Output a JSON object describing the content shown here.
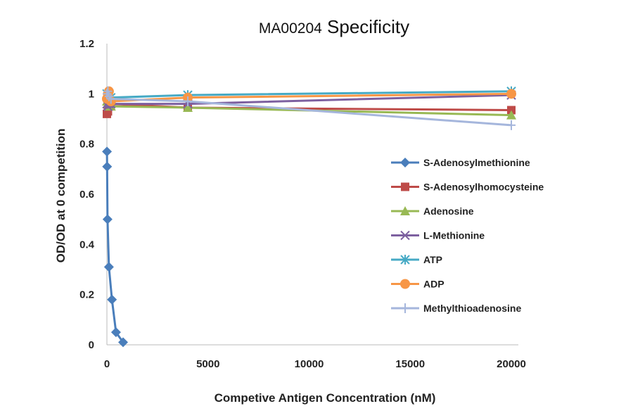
{
  "chart_data": {
    "type": "line",
    "title_prefix": "MA00204",
    "title": "Specificity",
    "xlabel": "Competive Antigen Concentration (nM)",
    "ylabel": "OD/OD at 0 competition",
    "xlim": [
      0,
      20000
    ],
    "ylim": [
      0,
      1.2
    ],
    "xticks": [
      0,
      5000,
      10000,
      15000,
      20000
    ],
    "yticks": [
      0,
      0.2,
      0.4,
      0.6,
      0.8,
      1,
      1.2
    ],
    "grid": false,
    "legend_position": "right",
    "series": [
      {
        "name": "S-Adenosylmethionine",
        "color": "#4a7ebb",
        "marker": "diamond",
        "x": [
          3,
          10,
          30,
          100,
          250,
          450,
          800
        ],
        "y": [
          0.77,
          0.71,
          0.5,
          0.31,
          0.18,
          0.05,
          0.01
        ]
      },
      {
        "name": "S-Adenosylhomocysteine",
        "color": "#be4b48",
        "marker": "square",
        "x": [
          0,
          50,
          100,
          200,
          4000,
          20000
        ],
        "y": [
          0.92,
          0.93,
          0.95,
          0.96,
          0.945,
          0.935
        ]
      },
      {
        "name": "Adenosine",
        "color": "#98b954",
        "marker": "triangle",
        "x": [
          0,
          50,
          100,
          200,
          4000,
          20000
        ],
        "y": [
          0.97,
          0.96,
          0.95,
          0.95,
          0.945,
          0.915
        ]
      },
      {
        "name": "L-Methionine",
        "color": "#7d60a0",
        "marker": "x",
        "x": [
          0,
          50,
          100,
          200,
          4000,
          20000
        ],
        "y": [
          0.96,
          0.95,
          0.96,
          0.96,
          0.96,
          0.995
        ]
      },
      {
        "name": "ATP",
        "color": "#46aac5",
        "marker": "star",
        "x": [
          0,
          50,
          100,
          200,
          4000,
          20000
        ],
        "y": [
          1.0,
          0.99,
          0.99,
          0.985,
          0.995,
          1.01
        ]
      },
      {
        "name": "ADP",
        "color": "#f79646",
        "marker": "circle",
        "x": [
          0,
          50,
          100,
          200,
          4000,
          20000
        ],
        "y": [
          0.98,
          1.0,
          1.01,
          0.97,
          0.985,
          1.0
        ]
      },
      {
        "name": "Methylthioadenosine",
        "color": "#a5b6dc",
        "marker": "plus",
        "x": [
          0,
          50,
          100,
          200,
          4000,
          20000
        ],
        "y": [
          1.0,
          1.01,
          0.99,
          0.98,
          0.97,
          0.875
        ]
      }
    ]
  }
}
